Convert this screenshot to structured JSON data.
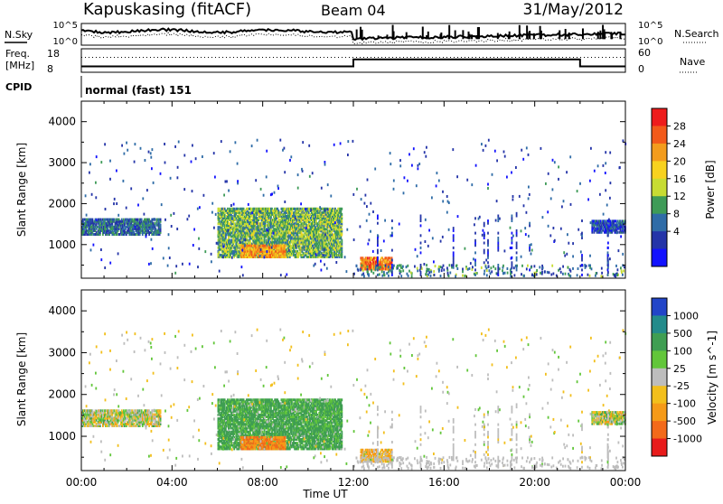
{
  "header": {
    "station": "Kapuskasing (fitACF)",
    "beam": "Beam 04",
    "date": "31/May/2012"
  },
  "noise_panel": {
    "left_label": "N.Sky",
    "right_label": "N.Search",
    "left_ticks": [
      "10^5",
      "10^0"
    ],
    "right_ticks": [
      "10^5",
      "10^0"
    ]
  },
  "freq_panel": {
    "left_label_line1": "Freq.",
    "left_label_line2": "[MHz]",
    "left_ticks": [
      "18",
      "8"
    ],
    "right_label": "Nave",
    "right_ticks": [
      "60",
      "0"
    ]
  },
  "cpid": {
    "label": "CPID",
    "value": "normal (fast) 151"
  },
  "time_axis": {
    "ticks": [
      "00:00",
      "04:00",
      "08:00",
      "12:00",
      "16:00",
      "20:00",
      "00:00"
    ],
    "label": "Time UT"
  },
  "power_colorbar": {
    "label": "Power [dB]",
    "ticks": [
      "28",
      "24",
      "20",
      "16",
      "12",
      "8",
      "4"
    ],
    "colors": [
      "#ee1c1c",
      "#f25a1a",
      "#f39c1d",
      "#f7d21f",
      "#c7dc33",
      "#3e9b57",
      "#2f6ca7",
      "#2434a8",
      "#1212ff"
    ]
  },
  "velocity_colorbar": {
    "label": "Velocity [m s^-1]",
    "ticks": [
      "1000",
      "500",
      "100",
      "25",
      "-25",
      "-100",
      "-500",
      "-1000"
    ],
    "colors": [
      "#2245c8",
      "#238b8b",
      "#3f9e52",
      "#62c63a",
      "#bdbdbd",
      "#f2bf1c",
      "#f59a18",
      "#f36a1a",
      "#e81b1b"
    ]
  },
  "chart_data": [
    {
      "type": "line",
      "title": "Kapuskasing (fitACF)",
      "series": [
        {
          "name": "N.Sky"
        },
        {
          "name": "N.Search"
        }
      ],
      "x_range": [
        "00:00",
        "00:00"
      ],
      "yscale": "log",
      "ylim": [
        "10^0",
        "10^5"
      ]
    },
    {
      "type": "line",
      "series": [
        {
          "name": "Freq.",
          "units": "MHz",
          "x": [
            0,
            12,
            12,
            22,
            22,
            24
          ],
          "values": [
            10.5,
            10.5,
            13.5,
            13.5,
            10.5,
            10.5
          ]
        },
        {
          "name": "Nave",
          "x": [
            0,
            24
          ],
          "values": [
            38,
            38
          ]
        }
      ],
      "ylim_left": [
        8,
        18
      ],
      "ylim_right": [
        0,
        60
      ]
    },
    {
      "type": "heatmap",
      "quantity": "Power [dB]",
      "xlabel": "Time UT",
      "ylabel": "Slant Range [km]",
      "xlim": [
        0,
        24
      ],
      "ylim": [
        180,
        4500
      ],
      "y_ticks": [
        1000,
        2000,
        3000,
        4000
      ],
      "color_scale": [
        4,
        28
      ],
      "regions": [
        {
          "t_start": 0.0,
          "t_end": 3.5,
          "range_start": 1250,
          "range_end": 1650,
          "value": 10
        },
        {
          "t_start": 6.0,
          "t_end": 11.5,
          "range_start": 700,
          "range_end": 1900,
          "value": 14
        },
        {
          "t_start": 7.0,
          "t_end": 9.0,
          "range_start": 700,
          "range_end": 1000,
          "value": 22
        },
        {
          "t_start": 12.3,
          "t_end": 13.7,
          "range_start": 400,
          "range_end": 700,
          "value": 24
        },
        {
          "t_start": 22.5,
          "t_end": 24.0,
          "range_start": 1300,
          "range_end": 1600,
          "value": 8
        }
      ]
    },
    {
      "type": "heatmap",
      "quantity": "Velocity [m s^-1]",
      "xlabel": "Time UT",
      "ylabel": "Slant Range [km]",
      "xlim": [
        0,
        24
      ],
      "ylim": [
        180,
        4500
      ],
      "y_ticks": [
        1000,
        2000,
        3000,
        4000
      ],
      "color_scale": [
        -1000,
        1000
      ],
      "regions": [
        {
          "t_start": 0.0,
          "t_end": 3.5,
          "range_start": 1250,
          "range_end": 1650,
          "value": 0
        },
        {
          "t_start": 6.0,
          "t_end": 11.5,
          "range_start": 700,
          "range_end": 1900,
          "value": 100
        },
        {
          "t_start": 6.5,
          "t_end": 9.0,
          "range_start": 700,
          "range_end": 1100,
          "value": -300
        },
        {
          "t_start": 12.3,
          "t_end": 13.7,
          "range_start": 400,
          "range_end": 700,
          "value": -50
        },
        {
          "t_start": 22.5,
          "t_end": 24.0,
          "range_start": 1300,
          "range_end": 1600,
          "value": 0
        }
      ]
    }
  ]
}
